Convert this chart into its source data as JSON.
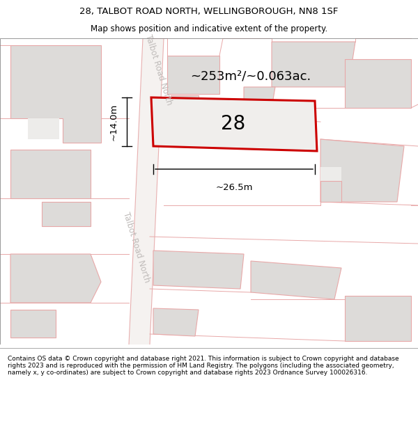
{
  "title_line1": "28, TALBOT ROAD NORTH, WELLINGBOROUGH, NN8 1SF",
  "title_line2": "Map shows position and indicative extent of the property.",
  "footer_text": "Contains OS data © Crown copyright and database right 2021. This information is subject to Crown copyright and database rights 2023 and is reproduced with the permission of HM Land Registry. The polygons (including the associated geometry, namely x, y co-ordinates) are subject to Crown copyright and database rights 2023 Ordnance Survey 100026316.",
  "road_label": "Talbot Road North",
  "area_label": "~253m²/~0.063ac.",
  "house_number": "28",
  "width_label": "~26.5m",
  "height_label": "~14.0m",
  "map_bg": "#edecea",
  "building_fill": "#dddbd9",
  "building_edge": "#e8a8a8",
  "road_fill": "#f5f2f0",
  "road_edge": "#e8b0b0",
  "prop_fill": "#f0eeec",
  "prop_edge": "#cc0000",
  "title_fontsize": 9.5,
  "subtitle_fontsize": 8.5,
  "footer_fontsize": 6.5
}
